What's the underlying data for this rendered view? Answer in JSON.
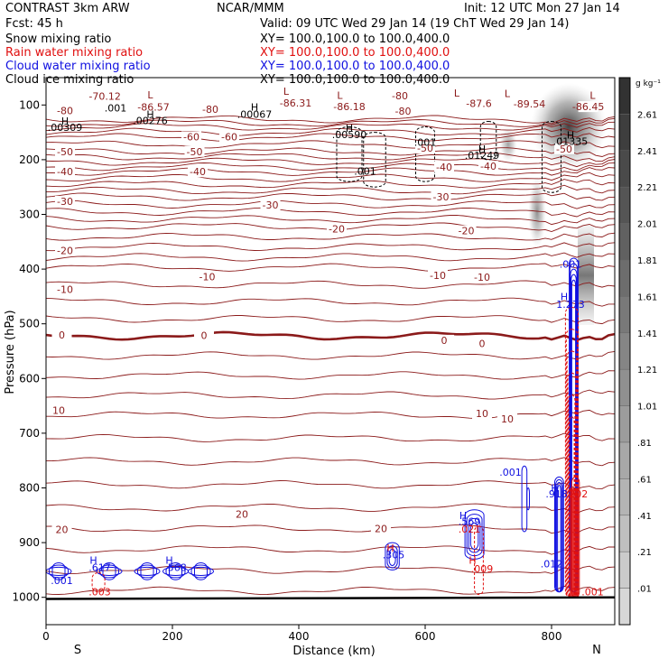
{
  "header": {
    "model": "CONTRAST  3km ARW",
    "org": "NCAR/MMM",
    "init": "Init: 12 UTC Mon 27 Jan 14",
    "fcst": "Fcst:    45 h",
    "valid": "Valid: 09 UTC Wed 29 Jan 14 (19 ChT Wed 29 Jan 14)"
  },
  "fields": [
    {
      "name": "Snow mixing ratio",
      "xy": "XY= 100.0,100.0 to 100.0,400.0",
      "color": "#000000"
    },
    {
      "name": "Rain water mixing ratio",
      "xy": "XY= 100.0,100.0 to 100.0,400.0",
      "color": "#e01010"
    },
    {
      "name": "Cloud water mixing ratio",
      "xy": "XY= 100.0,100.0 to 100.0,400.0",
      "color": "#1010e0"
    },
    {
      "name": "Cloud ice mixing ratio",
      "xy": "XY= 100.0,100.0 to 100.0,400.0",
      "color": "#000000"
    }
  ],
  "colorbar": {
    "unit": "g kg⁻¹",
    "labels": [
      "2.61",
      "2.41",
      "2.21",
      "2.01",
      "1.81",
      "1.61",
      "1.41",
      "1.21",
      "1.01",
      ".81",
      ".61",
      ".41",
      ".21",
      ".01"
    ]
  },
  "chart_data": {
    "type": "cross-section",
    "xlabel": "Distance (km)",
    "ylabel": "Pressure (hPa)",
    "xlim": [
      0,
      900
    ],
    "ylim": [
      1050,
      50
    ],
    "xticks": [
      0,
      200,
      400,
      600,
      800
    ],
    "yticks": [
      100,
      200,
      300,
      400,
      500,
      600,
      700,
      800,
      900,
      1000
    ],
    "end_labels": {
      "left": "S",
      "right": "N"
    },
    "temperature_contours": [
      {
        "value": -80,
        "p": 126
      },
      {
        "value": -70,
        "p": 140
      },
      {
        "value": -60,
        "p": 159
      },
      {
        "value": -50,
        "p": 185
      },
      {
        "value": -40,
        "p": 222
      },
      {
        "value": -30,
        "p": 268
      },
      {
        "value": -20,
        "p": 322
      },
      {
        "value": -10,
        "p": 397
      },
      {
        "value": 0,
        "p": 522
      },
      {
        "value": 10,
        "p": 667
      },
      {
        "value": 20,
        "p": 836
      }
    ],
    "temperature_labels": [
      {
        "text": "-70.12",
        "x": 93,
        "p": 84
      },
      {
        "text": "-86.57",
        "x": 170,
        "p": 104
      },
      {
        "text": "-86.31",
        "x": 395,
        "p": 96
      },
      {
        "text": "-86.18",
        "x": 480,
        "p": 103
      },
      {
        "text": "-87.6",
        "x": 685,
        "p": 97
      },
      {
        "text": "-89.54",
        "x": 765,
        "p": 98
      },
      {
        "text": "-86.45",
        "x": 858,
        "p": 103
      },
      {
        "text": "-80",
        "x": 30,
        "p": 110
      },
      {
        "text": "-80",
        "x": 260,
        "p": 108
      },
      {
        "text": "-80",
        "x": 560,
        "p": 83
      },
      {
        "text": "-80",
        "x": 565,
        "p": 111
      },
      {
        "text": "-60",
        "x": 230,
        "p": 158
      },
      {
        "text": "-60",
        "x": 290,
        "p": 158
      },
      {
        "text": "-50",
        "x": 30,
        "p": 185
      },
      {
        "text": "-50",
        "x": 235,
        "p": 185
      },
      {
        "text": "-50",
        "x": 600,
        "p": 179
      },
      {
        "text": "-50",
        "x": 820,
        "p": 180
      },
      {
        "text": "-40",
        "x": 30,
        "p": 222
      },
      {
        "text": "-40",
        "x": 240,
        "p": 222
      },
      {
        "text": "-40",
        "x": 630,
        "p": 213
      },
      {
        "text": "-40",
        "x": 700,
        "p": 212
      },
      {
        "text": "-30",
        "x": 30,
        "p": 276
      },
      {
        "text": "-30",
        "x": 355,
        "p": 283
      },
      {
        "text": "-30",
        "x": 625,
        "p": 268
      },
      {
        "text": "-20",
        "x": 30,
        "p": 366
      },
      {
        "text": "-20",
        "x": 460,
        "p": 326
      },
      {
        "text": "-20",
        "x": 665,
        "p": 330
      },
      {
        "text": "-10",
        "x": 30,
        "p": 437
      },
      {
        "text": "-10",
        "x": 255,
        "p": 414
      },
      {
        "text": "-10",
        "x": 620,
        "p": 411
      },
      {
        "text": "-10",
        "x": 690,
        "p": 415
      },
      {
        "text": "0",
        "x": 25,
        "p": 520
      },
      {
        "text": "0",
        "x": 250,
        "p": 521
      },
      {
        "text": "0",
        "x": 630,
        "p": 530
      },
      {
        "text": "0",
        "x": 690,
        "p": 536
      },
      {
        "text": "10",
        "x": 20,
        "p": 658
      },
      {
        "text": "10",
        "x": 690,
        "p": 664
      },
      {
        "text": "10",
        "x": 730,
        "p": 674
      },
      {
        "text": "20",
        "x": 25,
        "p": 876
      },
      {
        "text": "20",
        "x": 310,
        "p": 848
      },
      {
        "text": "20",
        "x": 530,
        "p": 874
      }
    ],
    "hl_markers": [
      {
        "type": "L",
        "x": 165,
        "p": 81,
        "color": "#8b1a1a"
      },
      {
        "type": "L",
        "x": 380,
        "p": 75,
        "color": "#8b1a1a"
      },
      {
        "type": "L",
        "x": 465,
        "p": 82,
        "color": "#8b1a1a"
      },
      {
        "type": "L",
        "x": 650,
        "p": 78,
        "color": "#8b1a1a"
      },
      {
        "type": "L",
        "x": 730,
        "p": 79,
        "color": "#8b1a1a"
      },
      {
        "type": "L",
        "x": 865,
        "p": 82,
        "color": "#8b1a1a"
      },
      {
        "type": "H",
        "x": 330,
        "p": 104,
        "color": "#000000"
      },
      {
        "type": "H",
        "x": 165,
        "p": 117,
        "color": "#000000"
      },
      {
        "type": "H",
        "x": 30,
        "p": 129,
        "color": "#000000"
      },
      {
        "type": "H",
        "x": 480,
        "p": 142,
        "color": "#000000"
      },
      {
        "type": "H",
        "x": 690,
        "p": 180,
        "color": "#000000"
      },
      {
        "type": "H",
        "x": 830,
        "p": 155,
        "color": "#000000"
      },
      {
        "type": "H",
        "x": 820,
        "p": 450,
        "color": "#1010e0"
      },
      {
        "type": "H",
        "x": 75,
        "p": 932,
        "color": "#1010e0"
      },
      {
        "type": "H",
        "x": 195,
        "p": 932,
        "color": "#1010e0"
      },
      {
        "type": "H",
        "x": 545,
        "p": 910,
        "color": "#e01010"
      },
      {
        "type": "H",
        "x": 660,
        "p": 850,
        "color": "#1010e0"
      },
      {
        "type": "H",
        "x": 805,
        "p": 800,
        "color": "#1010e0"
      },
      {
        "type": "H",
        "x": 675,
        "p": 932,
        "color": "#e01010"
      }
    ],
    "value_labels": [
      {
        "text": ".001",
        "x": 110,
        "p": 105,
        "color": "#000000"
      },
      {
        "text": ".00067",
        "x": 330,
        "p": 117,
        "color": "#000000"
      },
      {
        "text": ".00276",
        "x": 165,
        "p": 128,
        "color": "#000000"
      },
      {
        "text": ".00309",
        "x": 30,
        "p": 141,
        "color": "#000000"
      },
      {
        "text": ".00590",
        "x": 480,
        "p": 154,
        "color": "#000000"
      },
      {
        "text": ".001",
        "x": 600,
        "p": 168,
        "color": "#000000"
      },
      {
        "text": ".001",
        "x": 505,
        "p": 221,
        "color": "#000000"
      },
      {
        "text": ".01249",
        "x": 690,
        "p": 192,
        "color": "#000000"
      },
      {
        "text": ".01335",
        "x": 830,
        "p": 166,
        "color": "#000000"
      },
      {
        "text": ".001",
        "x": 830,
        "p": 391,
        "color": "#1010e0"
      },
      {
        "text": "1.273",
        "x": 830,
        "p": 464,
        "color": "#1010e0"
      },
      {
        "text": ".001",
        "x": 735,
        "p": 771,
        "color": "#1010e0"
      },
      {
        "text": ".918",
        "x": 808,
        "p": 811,
        "color": "#1010e0"
      },
      {
        "text": ".202",
        "x": 840,
        "p": 811,
        "color": "#e01010"
      },
      {
        "text": ".569",
        "x": 670,
        "p": 861,
        "color": "#1010e0"
      },
      {
        "text": ".021",
        "x": 670,
        "p": 875,
        "color": "#e01010"
      },
      {
        "text": ".305",
        "x": 550,
        "p": 922,
        "color": "#1010e0"
      },
      {
        "text": ".617",
        "x": 85,
        "p": 945,
        "color": "#1010e0"
      },
      {
        "text": ".003",
        "x": 85,
        "p": 990,
        "color": "#e01010"
      },
      {
        "text": ".001",
        "x": 25,
        "p": 969,
        "color": "#1010e0"
      },
      {
        "text": ".568",
        "x": 205,
        "p": 945,
        "color": "#1010e0"
      },
      {
        "text": ".009",
        "x": 690,
        "p": 948,
        "color": "#e01010"
      },
      {
        "text": ".012",
        "x": 800,
        "p": 939,
        "color": "#1010e0"
      },
      {
        "text": ".001",
        "x": 865,
        "p": 990,
        "color": "#e01010"
      }
    ]
  }
}
